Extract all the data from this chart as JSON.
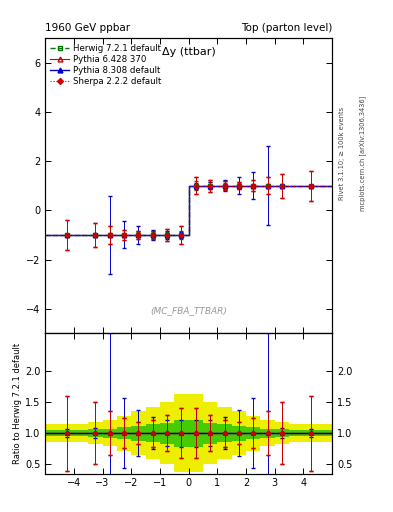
{
  "title_left": "1960 GeV ppbar",
  "title_right": "Top (parton level)",
  "plot_label": "(MC_FBA_TTBAR)",
  "ylabel_ratio": "Ratio to Herwig 7.2.1 default",
  "right_label": "Rivet 3.1.10; ≥ 100k events",
  "arxiv_label": "mcplots.cern.ch [arXiv:1306.3436]",
  "histogram_title": "Δy (ttbar)",
  "xlim": [
    -5.0,
    5.0
  ],
  "ylim_main": [
    -5.0,
    7.0
  ],
  "ylim_ratio": [
    0.35,
    2.6
  ],
  "xticks": [
    -4,
    -3,
    -2,
    -1,
    0,
    1,
    2,
    3,
    4
  ],
  "yticks_main": [
    -4,
    -2,
    0,
    2,
    4,
    6
  ],
  "yticks_ratio": [
    0.5,
    1.0,
    1.5,
    2.0
  ],
  "bin_edges": [
    -5.0,
    -3.5,
    -3.0,
    -2.5,
    -2.0,
    -1.5,
    -1.0,
    -0.5,
    0.0,
    0.5,
    1.0,
    1.5,
    2.0,
    2.5,
    3.0,
    3.5,
    5.0
  ],
  "herwig_values": [
    -1.0,
    -1.0,
    -1.0,
    -1.0,
    -1.0,
    -1.0,
    -1.0,
    -1.0,
    1.0,
    1.0,
    1.0,
    1.0,
    1.0,
    1.0,
    1.0,
    1.0
  ],
  "herwig_errors": [
    0.04,
    0.05,
    0.06,
    0.08,
    0.1,
    0.12,
    0.14,
    0.18,
    0.18,
    0.14,
    0.12,
    0.1,
    0.08,
    0.06,
    0.05,
    0.04
  ],
  "pythia6_values": [
    -1.0,
    -1.0,
    -1.0,
    -1.0,
    -1.0,
    -1.0,
    -1.0,
    -1.0,
    1.0,
    1.0,
    1.0,
    1.0,
    1.0,
    1.0,
    1.0,
    1.0
  ],
  "pythia6_errors": [
    0.6,
    0.5,
    0.35,
    0.22,
    0.15,
    0.18,
    0.25,
    0.35,
    0.35,
    0.25,
    0.18,
    0.15,
    0.22,
    0.35,
    0.5,
    0.6
  ],
  "pythia8_values": [
    -1.0,
    -1.0,
    -1.0,
    -1.0,
    -1.0,
    -1.0,
    -1.0,
    -1.0,
    1.0,
    1.0,
    1.0,
    1.0,
    1.0,
    1.0,
    1.0,
    1.0
  ],
  "pythia8_errors": [
    0.05,
    0.06,
    1.6,
    0.55,
    0.35,
    0.22,
    0.15,
    0.12,
    0.12,
    0.15,
    0.22,
    0.35,
    0.55,
    1.6,
    0.06,
    0.05
  ],
  "sherpa_values": [
    -1.0,
    -1.0,
    -1.0,
    -1.0,
    -1.0,
    -1.0,
    -1.0,
    -1.0,
    1.0,
    1.0,
    1.0,
    1.0,
    1.0,
    1.0,
    1.0,
    1.0
  ],
  "sherpa_errors": [
    0.6,
    0.5,
    0.35,
    0.22,
    0.15,
    0.18,
    0.25,
    0.35,
    0.35,
    0.25,
    0.18,
    0.15,
    0.22,
    0.35,
    0.5,
    0.6
  ],
  "herwig_color": "#007700",
  "pythia6_color": "#cc0000",
  "pythia8_color": "#0000cc",
  "sherpa_color": "#cc0000",
  "band_green": "#00bb00",
  "band_yellow": "#eeee00",
  "legend_entries": [
    "Herwig 7.2.1 default",
    "Pythia 6.428 370",
    "Pythia 8.308 default",
    "Sherpa 2.2.2 default"
  ]
}
